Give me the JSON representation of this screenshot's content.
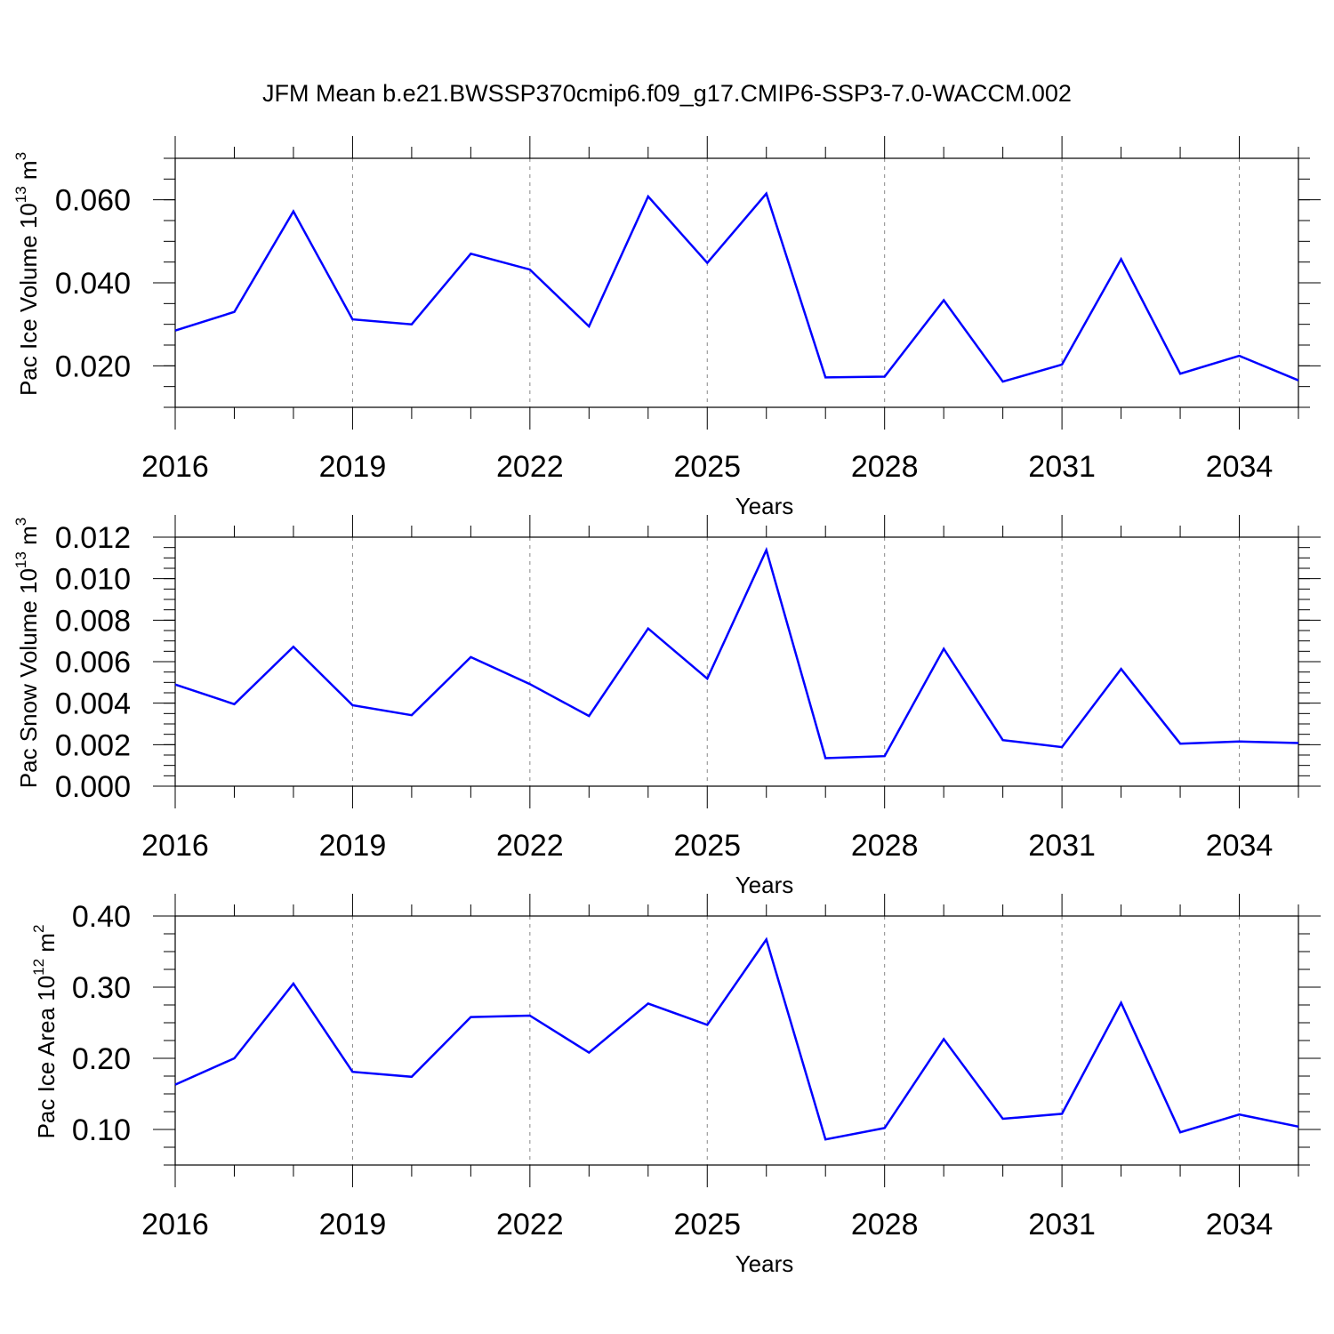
{
  "title": "JFM Mean b.e21.BWSSP370cmip6.f09_g17.CMIP6-SSP3-7.0-WACCM.002",
  "colors": {
    "line": "#0000ff",
    "frame": "#000000",
    "grid": "#888888"
  },
  "chart_data": [
    {
      "type": "line",
      "ylabel": {
        "main": "Pac Ice Volume 10",
        "sup1": "13",
        "mid": " m",
        "sup2": "3"
      },
      "xlabel": "Years",
      "xlim": [
        2016,
        2035
      ],
      "xticks": [
        "2016",
        "2019",
        "2022",
        "2025",
        "2028",
        "2031",
        "2034"
      ],
      "xtick_values": [
        2016,
        2019,
        2022,
        2025,
        2028,
        2031,
        2034
      ],
      "ylim": [
        0.01,
        0.07
      ],
      "yticks": [
        "0.020",
        "0.040",
        "0.060"
      ],
      "ytick_values": [
        0.02,
        0.04,
        0.06
      ],
      "ygrid": false,
      "xgrid_dashed": true,
      "x": [
        2016,
        2017,
        2018,
        2019,
        2020,
        2021,
        2022,
        2023,
        2024,
        2025,
        2026,
        2027,
        2028,
        2029,
        2030,
        2031,
        2032,
        2033,
        2034,
        2035
      ],
      "series": [
        {
          "values": [
            0.0285,
            0.033,
            0.0572,
            0.0312,
            0.03,
            0.047,
            0.0432,
            0.0295,
            0.0608,
            0.0448,
            0.0615,
            0.0172,
            0.0174,
            0.0358,
            0.0162,
            0.0203,
            0.0457,
            0.0181,
            0.0224,
            0.0165
          ]
        }
      ]
    },
    {
      "type": "line",
      "ylabel": {
        "main": "Pac Snow Volume 10",
        "sup1": "13",
        "mid": " m",
        "sup2": "3"
      },
      "xlabel": "Years",
      "xlim": [
        2016,
        2035
      ],
      "xticks": [
        "2016",
        "2019",
        "2022",
        "2025",
        "2028",
        "2031",
        "2034"
      ],
      "xtick_values": [
        2016,
        2019,
        2022,
        2025,
        2028,
        2031,
        2034
      ],
      "ylim": [
        0.0,
        0.012
      ],
      "yticks": [
        "0.000",
        "0.002",
        "0.004",
        "0.006",
        "0.008",
        "0.010",
        "0.012"
      ],
      "ytick_values": [
        0.0,
        0.002,
        0.004,
        0.006,
        0.008,
        0.01,
        0.012
      ],
      "ygrid": false,
      "xgrid_dashed": true,
      "x": [
        2016,
        2017,
        2018,
        2019,
        2020,
        2021,
        2022,
        2023,
        2024,
        2025,
        2026,
        2027,
        2028,
        2029,
        2030,
        2031,
        2032,
        2033,
        2034,
        2035
      ],
      "series": [
        {
          "values": [
            0.0049,
            0.00395,
            0.00672,
            0.0039,
            0.00342,
            0.00622,
            0.00492,
            0.00338,
            0.0076,
            0.00518,
            0.01138,
            0.00135,
            0.00145,
            0.00662,
            0.00222,
            0.00188,
            0.00565,
            0.00205,
            0.00215,
            0.00208
          ]
        }
      ]
    },
    {
      "type": "line",
      "ylabel": {
        "main": "Pac Ice Area 10",
        "sup1": "12",
        "mid": " m",
        "sup2": "2"
      },
      "xlabel": "Years",
      "xlim": [
        2016,
        2035
      ],
      "xticks": [
        "2016",
        "2019",
        "2022",
        "2025",
        "2028",
        "2031",
        "2034"
      ],
      "xtick_values": [
        2016,
        2019,
        2022,
        2025,
        2028,
        2031,
        2034
      ],
      "ylim": [
        0.05,
        0.4
      ],
      "yticks": [
        "0.10",
        "0.20",
        "0.30",
        "0.40"
      ],
      "ytick_values": [
        0.1,
        0.2,
        0.3,
        0.4
      ],
      "ygrid": false,
      "xgrid_dashed": true,
      "x": [
        2016,
        2017,
        2018,
        2019,
        2020,
        2021,
        2022,
        2023,
        2024,
        2025,
        2026,
        2027,
        2028,
        2029,
        2030,
        2031,
        2032,
        2033,
        2034,
        2035
      ],
      "series": [
        {
          "values": [
            0.163,
            0.2,
            0.305,
            0.181,
            0.174,
            0.258,
            0.26,
            0.208,
            0.277,
            0.247,
            0.367,
            0.086,
            0.102,
            0.227,
            0.115,
            0.122,
            0.278,
            0.096,
            0.121,
            0.104
          ]
        }
      ]
    }
  ]
}
